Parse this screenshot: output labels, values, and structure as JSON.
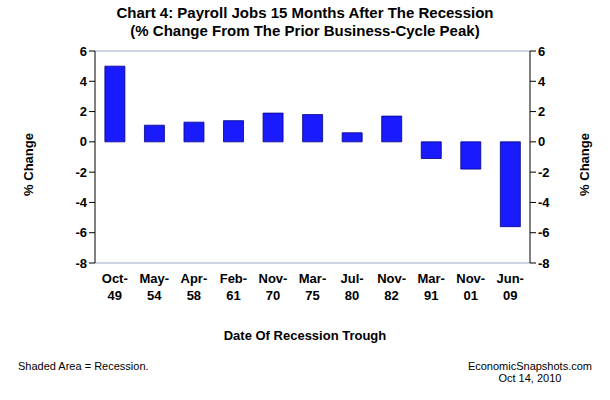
{
  "chart_data": {
    "type": "bar",
    "title": "Chart 4: Payroll Jobs 15 Months After The Recession",
    "subtitle": "(% Change From The Prior Business-Cycle Peak)",
    "x_label": "Date Of Recession Trough",
    "y_label": "% Change",
    "categories": [
      "Oct-49",
      "May-54",
      "Apr-58",
      "Feb-61",
      "Nov-70",
      "Mar-75",
      "Jul-80",
      "Nov-82",
      "Mar-91",
      "Nov-01",
      "Jun-09"
    ],
    "values": [
      5.0,
      1.1,
      1.3,
      1.4,
      1.9,
      1.8,
      0.6,
      1.7,
      -1.1,
      -1.8,
      -5.6
    ],
    "color": "#1a1aff",
    "ylim": [
      -8,
      6
    ],
    "yticks": [
      -8,
      -6,
      -4,
      -2,
      0,
      2,
      4,
      6
    ],
    "grid": true,
    "annotations": [
      "Shaded Area = Recession.",
      "EconomicSnapshots.com",
      "Oct 14, 2010"
    ]
  }
}
